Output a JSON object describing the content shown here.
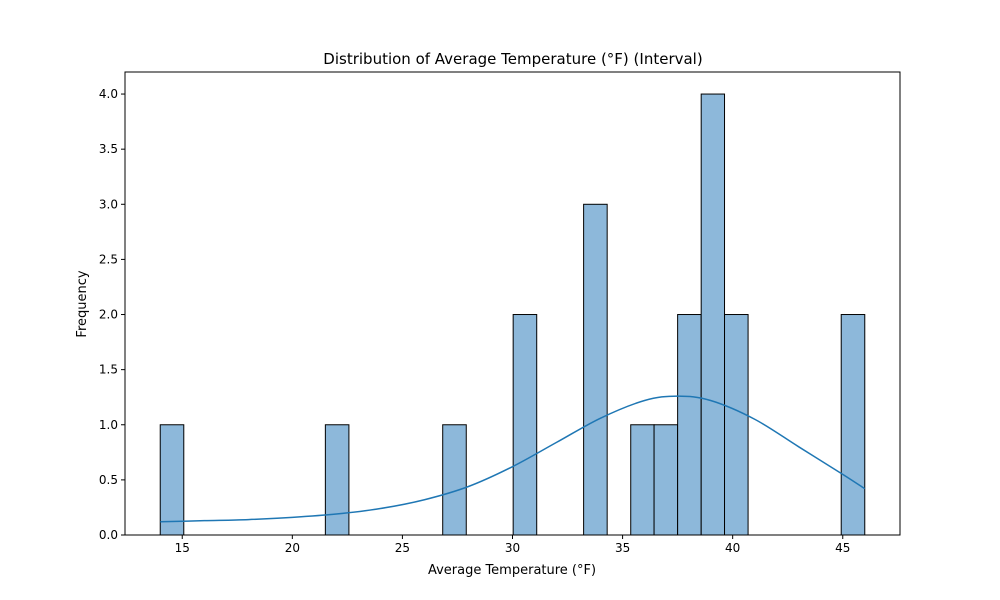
{
  "chart_data": {
    "type": "bar",
    "title": "Distribution of Average Temperature (°F) (Interval)",
    "xlabel": "Average Temperature (°F)",
    "ylabel": "Frequency",
    "xlim": [
      12.4,
      47.6
    ],
    "ylim": [
      0,
      4.2
    ],
    "xticks": [
      15,
      20,
      25,
      30,
      35,
      40,
      45
    ],
    "yticks": [
      0.0,
      0.5,
      1.0,
      1.5,
      2.0,
      2.5,
      3.0,
      3.5,
      4.0
    ],
    "bins": [
      {
        "x0": 14.0,
        "x1": 15.07,
        "count": 1
      },
      {
        "x0": 21.5,
        "x1": 22.57,
        "count": 1
      },
      {
        "x0": 26.83,
        "x1": 27.9,
        "count": 1
      },
      {
        "x0": 30.03,
        "x1": 31.1,
        "count": 2
      },
      {
        "x0": 33.23,
        "x1": 34.3,
        "count": 3
      },
      {
        "x0": 35.37,
        "x1": 36.43,
        "count": 1
      },
      {
        "x0": 36.43,
        "x1": 37.5,
        "count": 1
      },
      {
        "x0": 37.5,
        "x1": 38.57,
        "count": 2
      },
      {
        "x0": 38.57,
        "x1": 39.63,
        "count": 4
      },
      {
        "x0": 39.63,
        "x1": 40.7,
        "count": 2
      },
      {
        "x0": 44.93,
        "x1": 46.0,
        "count": 2
      }
    ],
    "kde": {
      "x": [
        14,
        16,
        18,
        20,
        22,
        24,
        26,
        28,
        30,
        32,
        34,
        36,
        37.5,
        39,
        41,
        43,
        45,
        46
      ],
      "y": [
        0.12,
        0.13,
        0.14,
        0.16,
        0.19,
        0.24,
        0.32,
        0.44,
        0.62,
        0.84,
        1.06,
        1.22,
        1.26,
        1.22,
        1.05,
        0.8,
        0.55,
        0.42
      ]
    },
    "colors": {
      "bar_fill": "#8db8da",
      "bar_edge": "#000000",
      "kde_line": "#1f77b4"
    },
    "grid": false,
    "legend": "none"
  }
}
